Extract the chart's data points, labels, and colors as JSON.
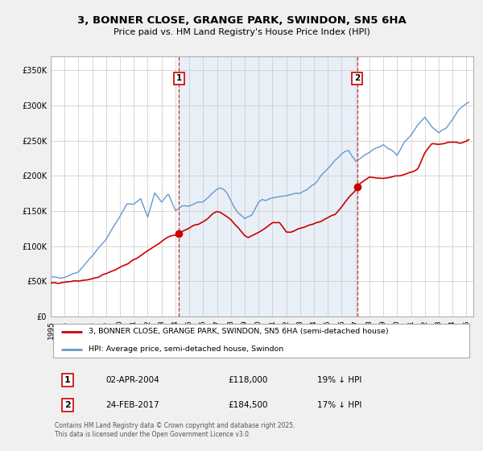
{
  "title": "3, BONNER CLOSE, GRANGE PARK, SWINDON, SN5 6HA",
  "subtitle": "Price paid vs. HM Land Registry's House Price Index (HPI)",
  "legend_line1": "3, BONNER CLOSE, GRANGE PARK, SWINDON, SN5 6HA (semi-detached house)",
  "legend_line2": "HPI: Average price, semi-detached house, Swindon",
  "transaction1_label": "1",
  "transaction1_date": "02-APR-2004",
  "transaction1_price": "£118,000",
  "transaction1_hpi": "19% ↓ HPI",
  "transaction1_x": 2004.25,
  "transaction1_y": 118000,
  "transaction2_label": "2",
  "transaction2_date": "24-FEB-2017",
  "transaction2_price": "£184,500",
  "transaction2_hpi": "17% ↓ HPI",
  "transaction2_x": 2017.12,
  "transaction2_y": 184500,
  "line_color_property": "#cc0000",
  "line_color_hpi": "#6699cc",
  "fill_color_hpi": "#ddeeff",
  "background_color": "#f0f0f0",
  "plot_bg_color": "#ffffff",
  "grid_color": "#cccccc",
  "footer_text": "Contains HM Land Registry data © Crown copyright and database right 2025.\nThis data is licensed under the Open Government Licence v3.0.",
  "ylim": [
    0,
    370000
  ],
  "xlim_start": 1995.0,
  "xlim_end": 2025.5,
  "yticks": [
    0,
    50000,
    100000,
    150000,
    200000,
    250000,
    300000,
    350000
  ],
  "ytick_labels": [
    "£0",
    "£50K",
    "£100K",
    "£150K",
    "£200K",
    "£250K",
    "£300K",
    "£350K"
  ],
  "xticks": [
    1995,
    1996,
    1997,
    1998,
    1999,
    2000,
    2001,
    2002,
    2003,
    2004,
    2005,
    2006,
    2007,
    2008,
    2009,
    2010,
    2011,
    2012,
    2013,
    2014,
    2015,
    2016,
    2017,
    2018,
    2019,
    2020,
    2021,
    2022,
    2023,
    2024,
    2025
  ]
}
